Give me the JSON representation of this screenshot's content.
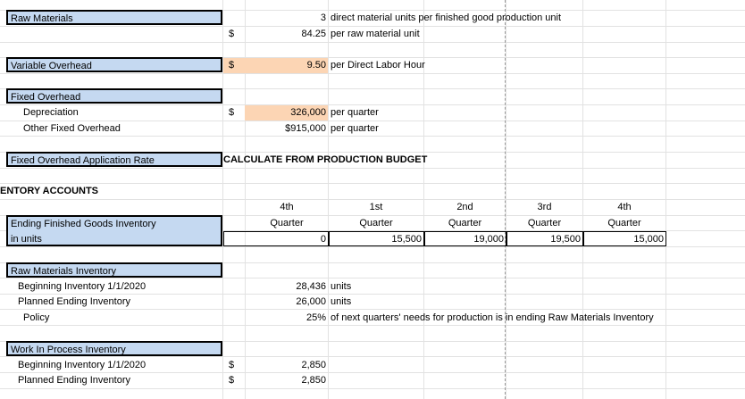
{
  "raw_materials": {
    "label": "Raw Materials",
    "units_value": "3",
    "units_desc": "direct material units per finished good production unit",
    "currency": "$",
    "price_value": "84.25",
    "price_desc": "per raw material unit"
  },
  "variable_overhead": {
    "label": "Variable Overhead",
    "currency": "$",
    "value": "9.50",
    "desc": "per Direct Labor Hour"
  },
  "fixed_overhead": {
    "label": "Fixed Overhead",
    "depreciation_label": "Depreciation",
    "depreciation_currency": "$",
    "depreciation_value": "326,000",
    "depreciation_desc": "per quarter",
    "other_label": "Other Fixed Overhead",
    "other_value": "$915,000",
    "other_desc": "per quarter"
  },
  "application_rate": {
    "label": "Fixed Overhead Application Rate",
    "note": "CALCULATE FROM PRODUCTION BUDGET"
  },
  "inventory_section": {
    "title": "ENTORY ACCOUNTS"
  },
  "finished_goods": {
    "label_line1": "Ending Finished Goods Inventory",
    "label_line2": "in units",
    "quarters": [
      {
        "top": "4th",
        "bottom": "Quarter",
        "value": "0"
      },
      {
        "top": "1st",
        "bottom": "Quarter",
        "value": "15,500"
      },
      {
        "top": "2nd",
        "bottom": "Quarter",
        "value": "19,000"
      },
      {
        "top": "3rd",
        "bottom": "Quarter",
        "value": "19,500"
      },
      {
        "top": "4th",
        "bottom": "Quarter",
        "value": "15,000"
      }
    ]
  },
  "raw_materials_inventory": {
    "label": "Raw Materials Inventory",
    "beginning_label": "Beginning Inventory 1/1/2020",
    "beginning_value": "28,436",
    "beginning_unit": "units",
    "planned_label": "Planned Ending Inventory",
    "planned_value": "26,000",
    "planned_unit": "units",
    "policy_label": "Policy",
    "policy_value": "25%",
    "policy_desc": "of next quarters' needs for production is in ending Raw Materials Inventory"
  },
  "wip_inventory": {
    "label": "Work In Process Inventory",
    "beginning_label": "Beginning Inventory 1/1/2020",
    "beginning_currency": "$",
    "beginning_value": "2,850",
    "planned_label": "Planned Ending Inventory",
    "planned_currency": "$",
    "planned_value": "2,850"
  }
}
